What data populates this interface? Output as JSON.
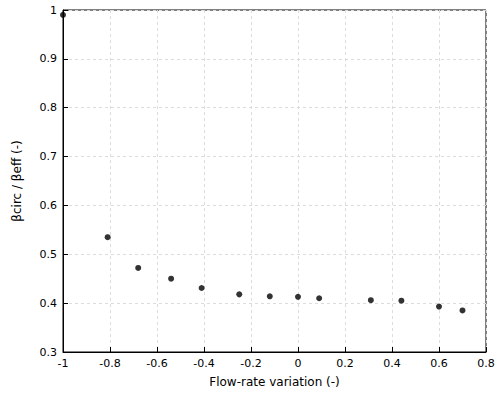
{
  "chart_data": {
    "type": "scatter",
    "x_label": "Flow-rate variation (-)",
    "y_label": "βcirc / βeff (-)",
    "x": [
      -1,
      -0.81,
      -0.68,
      -0.54,
      -0.41,
      -0.25,
      -0.12,
      0,
      0.09,
      0.31,
      0.44,
      0.6,
      0.7
    ],
    "values": [
      0.99,
      0.535,
      0.472,
      0.45,
      0.431,
      0.418,
      0.414,
      0.413,
      0.41,
      0.406,
      0.405,
      0.393,
      0.385
    ],
    "color": "#000000",
    "marker": "circle",
    "xlim": [
      -1,
      0.8
    ],
    "xticks": [
      -1,
      -0.8,
      -0.6,
      -0.4,
      -0.2,
      0,
      0.2,
      0.4,
      0.6,
      0.8
    ],
    "ylim": [
      0.3,
      1
    ],
    "yticks": [
      0.3,
      0.4,
      0.5,
      0.6,
      0.7,
      0.8,
      0.9,
      1
    ],
    "grid": true
  }
}
